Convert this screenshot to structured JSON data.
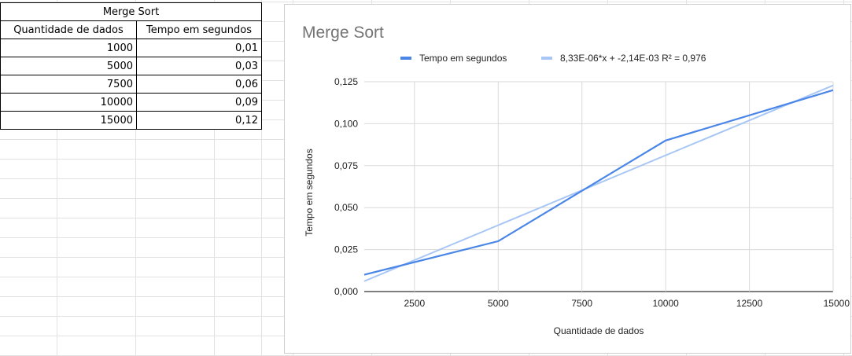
{
  "table": {
    "title": "Merge Sort",
    "headers": [
      "Quantidade de dados",
      "Tempo em segundos"
    ],
    "rows": [
      [
        "1000",
        "0,01"
      ],
      [
        "5000",
        "0,03"
      ],
      [
        "7500",
        "0,06"
      ],
      [
        "10000",
        "0,09"
      ],
      [
        "15000",
        "0,12"
      ]
    ]
  },
  "chart_data": {
    "type": "line",
    "title": "Merge Sort",
    "xlabel": "Quantidade de dados",
    "ylabel": "Tempo em segundos",
    "xlim": [
      1000,
      15000
    ],
    "ylim": [
      0,
      0.125
    ],
    "x_ticks": [
      2500,
      5000,
      7500,
      10000,
      12500,
      15000
    ],
    "y_ticks": [
      0,
      0.025,
      0.05,
      0.075,
      0.1,
      0.125
    ],
    "x_tick_labels": [
      "2500",
      "5000",
      "7500",
      "10000",
      "12500",
      "15000"
    ],
    "y_tick_labels": [
      "0,000",
      "0,025",
      "0,050",
      "0,075",
      "0,100",
      "0,125"
    ],
    "legend_position": "top",
    "grid": true,
    "series": [
      {
        "name": "Tempo em segundos",
        "color": "#4a86e8",
        "x": [
          1000,
          5000,
          7500,
          10000,
          15000
        ],
        "y": [
          0.01,
          0.03,
          0.06,
          0.09,
          0.12
        ]
      },
      {
        "name": "8,33E-06*x + -2,14E-03 R² = 0,976",
        "color": "#a8c7f5",
        "kind": "trendline",
        "slope": 8.33e-06,
        "intercept": -0.00214
      }
    ]
  }
}
